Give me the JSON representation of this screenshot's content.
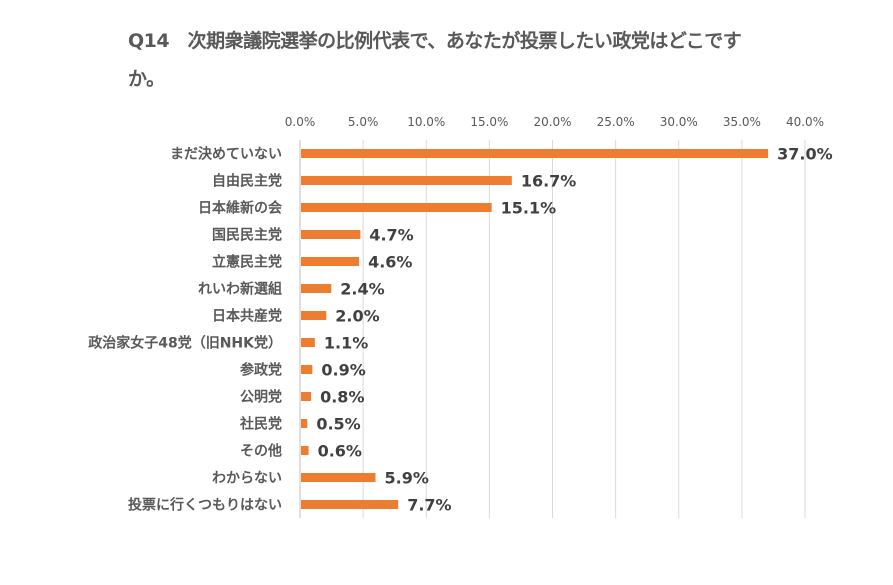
{
  "chart_data": {
    "type": "bar",
    "orientation": "horizontal",
    "title": "Q14　次期衆議院選挙の比例代表で、あなたが投票したい政党はどこですか。",
    "categories": [
      "まだ決めていない",
      "自由民主党",
      "日本維新の会",
      "国民民主党",
      "立憲民主党",
      "れいわ新選組",
      "日本共産党",
      "政治家女子48党（旧NHK党）",
      "参政党",
      "公明党",
      "社民党",
      "その他",
      "わからない",
      "投票に行くつもりはない"
    ],
    "values": [
      37.0,
      16.7,
      15.1,
      4.7,
      4.6,
      2.4,
      2.0,
      1.1,
      0.9,
      0.8,
      0.5,
      0.6,
      5.9,
      7.7
    ],
    "value_labels": [
      "37.0%",
      "16.7%",
      "15.1%",
      "4.7%",
      "4.6%",
      "2.4%",
      "2.0%",
      "1.1%",
      "0.9%",
      "0.8%",
      "0.5%",
      "0.6%",
      "5.9%",
      "7.7%"
    ],
    "xlim": [
      0,
      40
    ],
    "xticks": [
      "0.0%",
      "5.0%",
      "10.0%",
      "15.0%",
      "20.0%",
      "25.0%",
      "30.0%",
      "35.0%",
      "40.0%"
    ],
    "xlabel": "",
    "ylabel": "",
    "grid": true,
    "legend": "none",
    "bar_color": "#ED7D31"
  }
}
